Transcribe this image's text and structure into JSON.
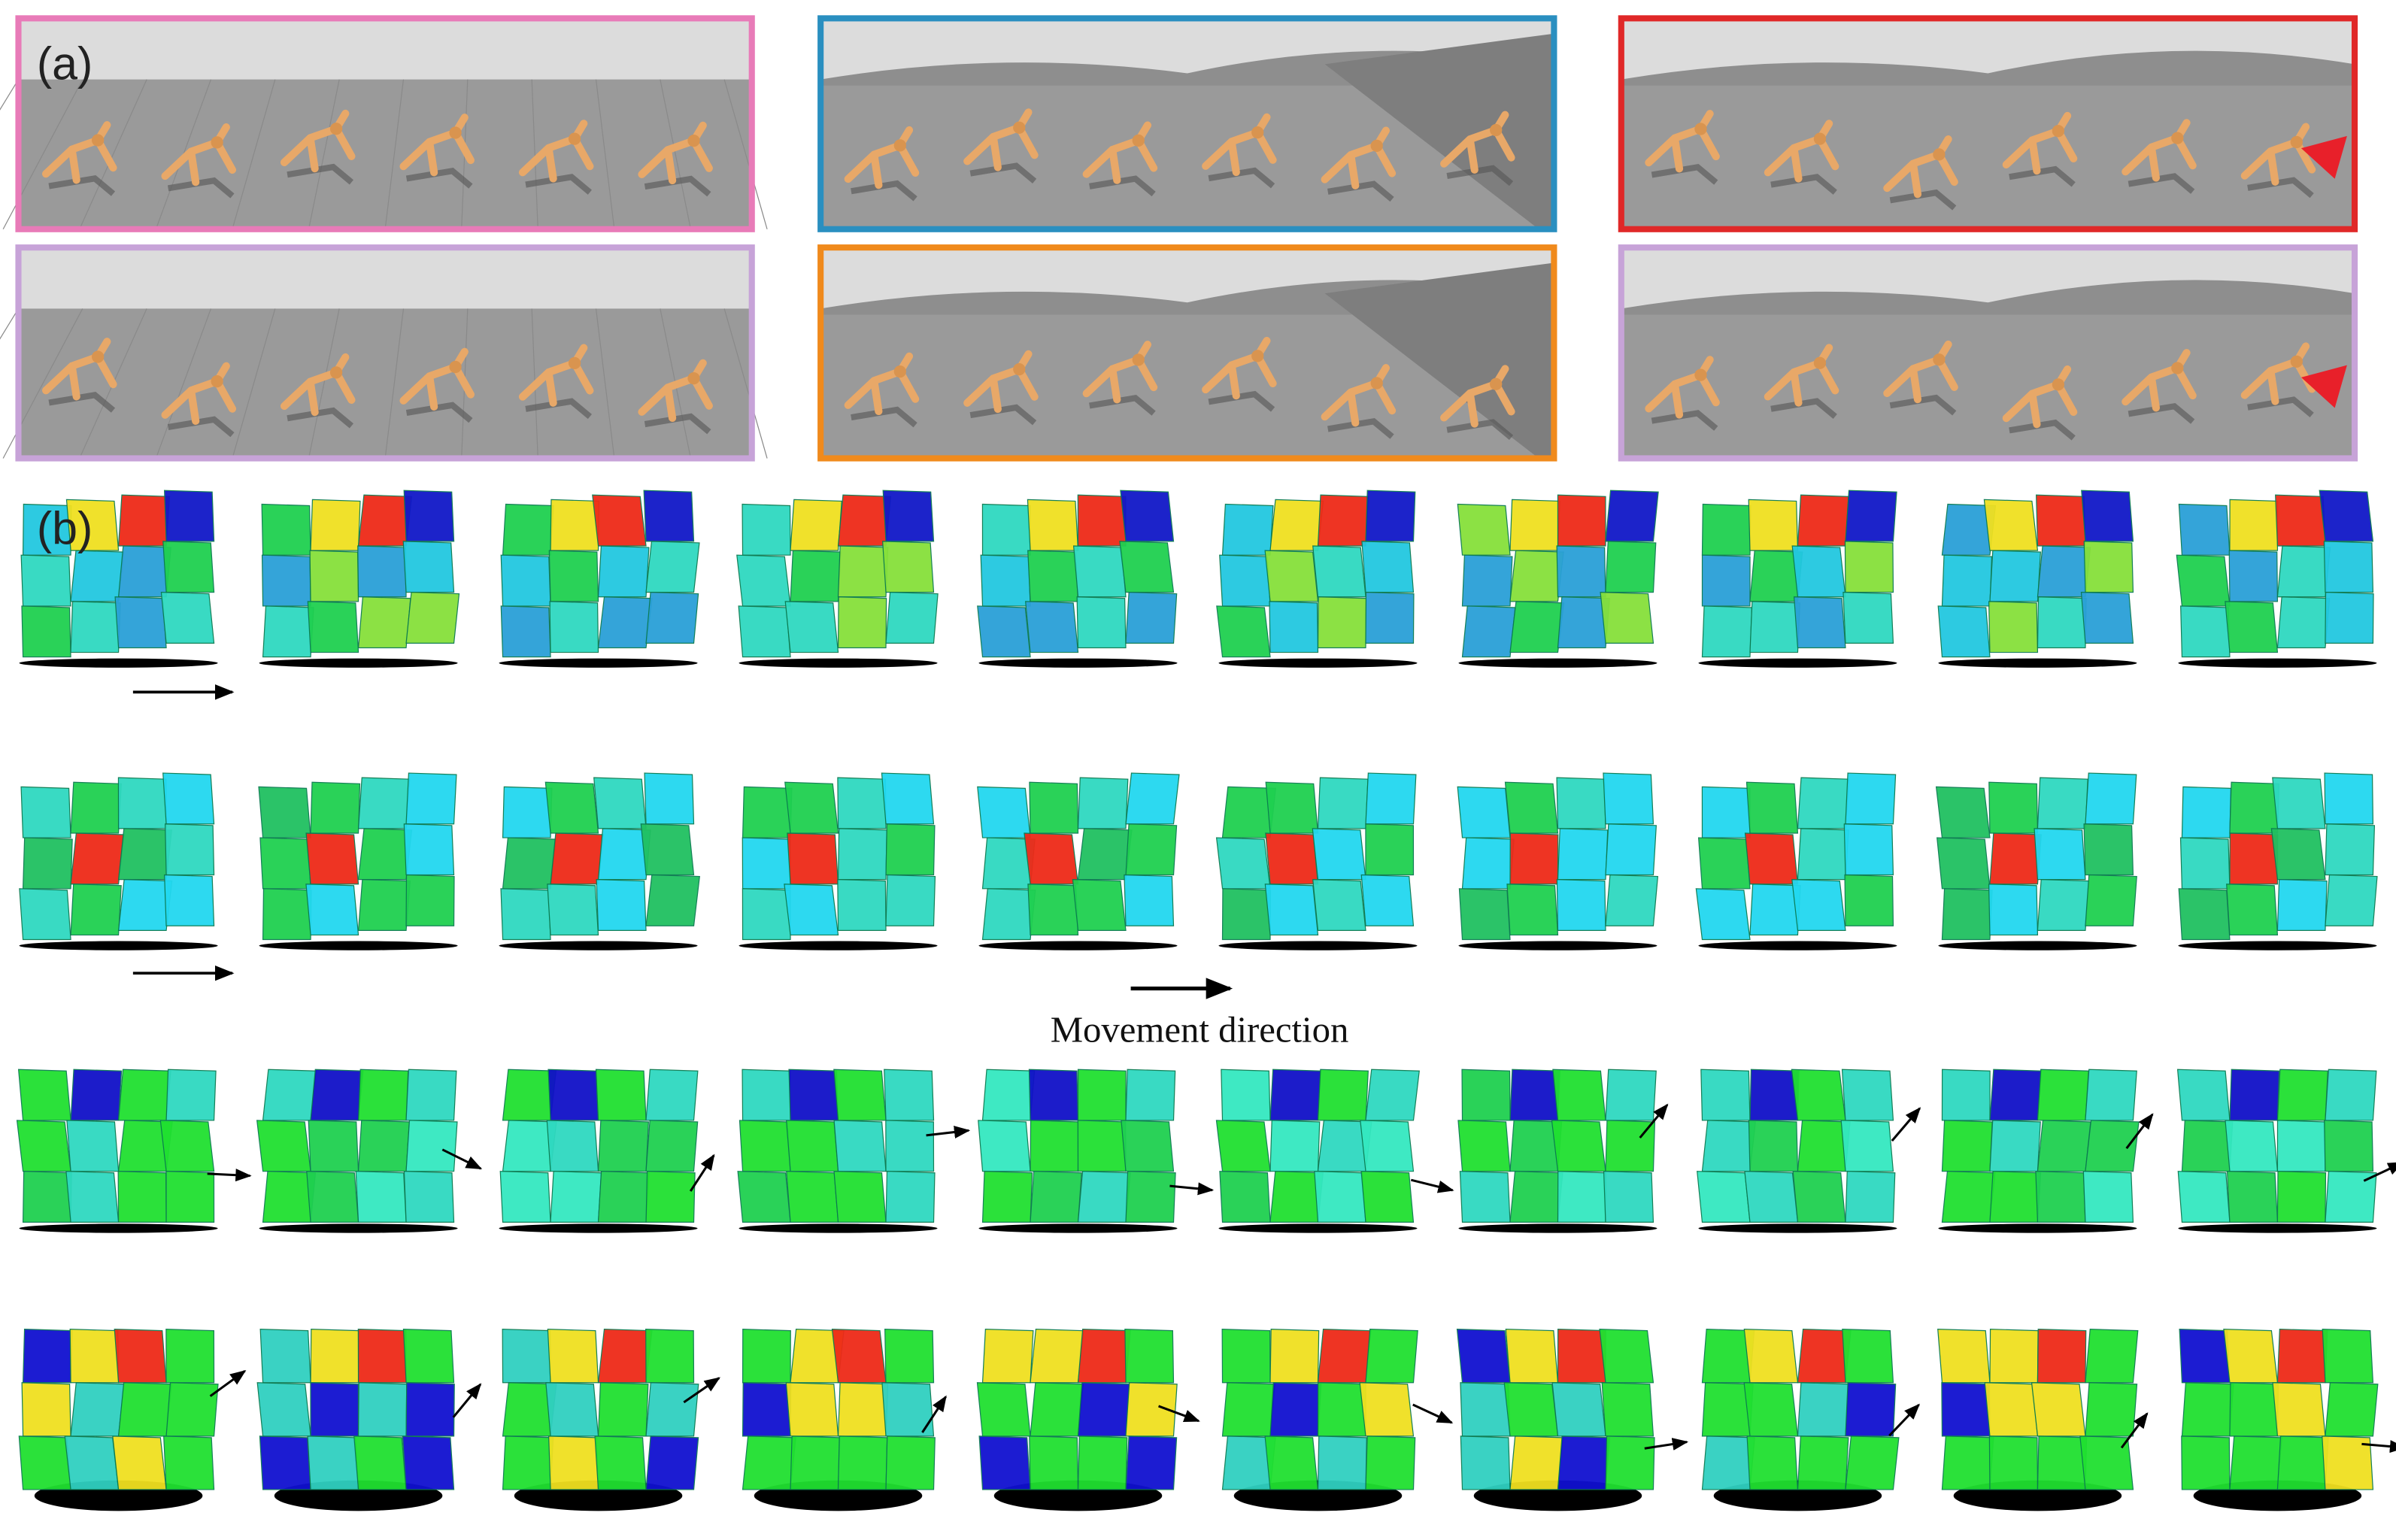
{
  "panel_a": {
    "label": "(a)"
  },
  "panel_b": {
    "label": "(b)",
    "annotation": "Movement direction"
  }
}
